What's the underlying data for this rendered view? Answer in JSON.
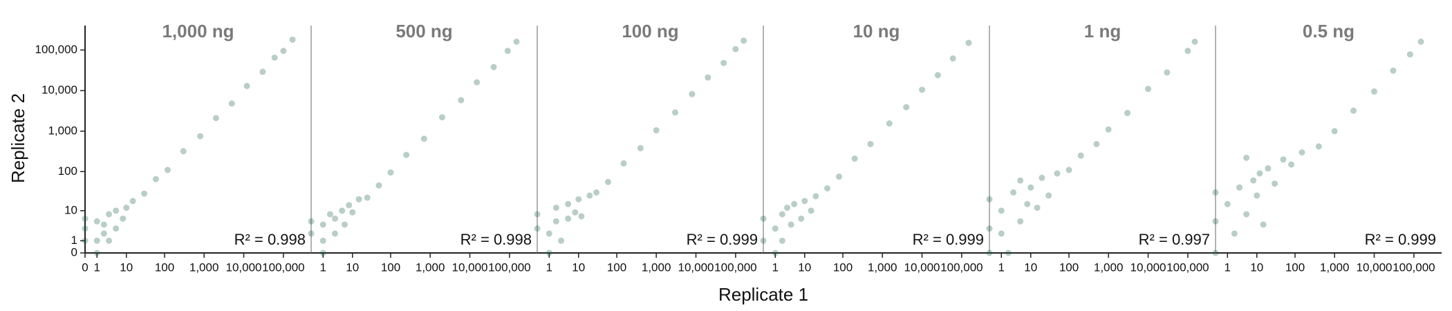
{
  "axes": {
    "xlabel": "Replicate 1",
    "ylabel": "Replicate 2"
  },
  "chart_data": [
    {
      "type": "scatter",
      "title": "1,000 ng",
      "annotation": "R² = 0.998",
      "color": "#135c44",
      "alpha": 0.3,
      "scale": "log1p",
      "xlim": [
        0,
        500000
      ],
      "ylim": [
        0,
        400000
      ],
      "xticks": [
        0,
        1,
        10,
        100,
        {
          "value": 1000,
          "label": "1,000"
        },
        {
          "value": 10000,
          "label": "10,000"
        },
        {
          "value": 100000,
          "label": "100,000"
        }
      ],
      "yticks": [
        0,
        1,
        10,
        100,
        {
          "value": 1000,
          "label": "1,000"
        },
        {
          "value": 10000,
          "label": "10,000"
        },
        {
          "value": 100000,
          "label": "100,000"
        }
      ],
      "x": [
        0,
        0,
        0,
        1,
        1,
        1,
        2,
        2,
        3,
        3,
        5,
        5,
        8,
        10,
        15,
        30,
        60,
        120,
        300,
        800,
        2000,
        5000,
        12000,
        30000,
        60000,
        100000,
        170000
      ],
      "y": [
        1,
        3,
        6,
        0,
        1,
        5,
        2,
        4,
        1,
        8,
        3,
        10,
        6,
        12,
        18,
        28,
        65,
        110,
        320,
        750,
        2100,
        4800,
        13000,
        29000,
        65000,
        95000,
        180000
      ]
    },
    {
      "type": "scatter",
      "title": "500 ng",
      "annotation": "R² = 0.998",
      "color": "#135c44",
      "alpha": 0.3,
      "scale": "log1p",
      "xlim": [
        0,
        500000
      ],
      "ylim": [
        0,
        400000
      ],
      "xticks": [
        1,
        10,
        100,
        {
          "value": 1000,
          "label": "1,000"
        },
        {
          "value": 10000,
          "label": "10,000"
        },
        {
          "value": 100000,
          "label": "100,000"
        }
      ],
      "x": [
        0,
        0,
        1,
        1,
        1,
        2,
        3,
        3,
        5,
        6,
        8,
        10,
        15,
        25,
        50,
        100,
        250,
        700,
        2000,
        6000,
        15000,
        40000,
        90000,
        150000
      ],
      "y": [
        2,
        5,
        0,
        1,
        4,
        8,
        2,
        6,
        10,
        4,
        14,
        9,
        20,
        22,
        45,
        95,
        260,
        650,
        2200,
        5800,
        16000,
        38000,
        95000,
        160000
      ]
    },
    {
      "type": "scatter",
      "title": "100 ng",
      "annotation": "R² = 0.999",
      "color": "#135c44",
      "alpha": 0.3,
      "scale": "log1p",
      "xlim": [
        0,
        500000
      ],
      "ylim": [
        0,
        400000
      ],
      "xticks": [
        1,
        10,
        100,
        {
          "value": 1000,
          "label": "1,000"
        },
        {
          "value": 10000,
          "label": "10,000"
        },
        {
          "value": 100000,
          "label": "100,000"
        }
      ],
      "x": [
        0,
        0,
        1,
        1,
        2,
        2,
        3,
        5,
        5,
        8,
        10,
        12,
        20,
        30,
        60,
        150,
        400,
        1000,
        3000,
        8000,
        20000,
        50000,
        100000,
        160000
      ],
      "y": [
        3,
        8,
        0,
        2,
        5,
        12,
        1,
        6,
        15,
        9,
        20,
        7,
        25,
        30,
        55,
        160,
        380,
        1050,
        2900,
        8200,
        21000,
        48000,
        105000,
        170000
      ]
    },
    {
      "type": "scatter",
      "title": "10 ng",
      "annotation": "R² = 0.999",
      "color": "#135c44",
      "alpha": 0.3,
      "scale": "log1p",
      "xlim": [
        0,
        500000
      ],
      "ylim": [
        0,
        400000
      ],
      "xticks": [
        1,
        10,
        100,
        {
          "value": 1000,
          "label": "1,000"
        },
        {
          "value": 10000,
          "label": "10,000"
        },
        {
          "value": 100000,
          "label": "100,000"
        }
      ],
      "x": [
        0,
        0,
        1,
        1,
        2,
        2,
        3,
        4,
        5,
        8,
        10,
        15,
        20,
        40,
        80,
        200,
        500,
        1500,
        4000,
        10000,
        25000,
        60000,
        150000
      ],
      "y": [
        1,
        6,
        0,
        3,
        8,
        1,
        12,
        4,
        15,
        6,
        18,
        10,
        24,
        38,
        75,
        210,
        480,
        1550,
        3900,
        10500,
        24000,
        62000,
        150000
      ]
    },
    {
      "type": "scatter",
      "title": "1 ng",
      "annotation": "R² = 0.997",
      "color": "#135c44",
      "alpha": 0.3,
      "scale": "log1p",
      "xlim": [
        0,
        500000
      ],
      "ylim": [
        0,
        400000
      ],
      "xticks": [
        1,
        10,
        100,
        {
          "value": 1000,
          "label": "1,000"
        },
        {
          "value": 10000,
          "label": "10,000"
        },
        {
          "value": 100000,
          "label": "100,000"
        }
      ],
      "x": [
        0,
        0,
        0,
        1,
        1,
        2,
        3,
        5,
        5,
        8,
        10,
        15,
        20,
        30,
        50,
        100,
        200,
        500,
        1000,
        3000,
        10000,
        30000,
        100000,
        150000
      ],
      "y": [
        3,
        20,
        0,
        10,
        2,
        0,
        30,
        5,
        60,
        15,
        40,
        12,
        70,
        25,
        90,
        110,
        250,
        480,
        1100,
        2800,
        11000,
        28000,
        95000,
        160000
      ]
    },
    {
      "type": "scatter",
      "title": "0.5 ng",
      "annotation": "R² = 0.999",
      "color": "#135c44",
      "alpha": 0.3,
      "scale": "log1p",
      "xlim": [
        0,
        500000
      ],
      "ylim": [
        0,
        400000
      ],
      "xticks": [
        1,
        10,
        100,
        {
          "value": 1000,
          "label": "1,000"
        },
        {
          "value": 10000,
          "label": "10,000"
        },
        {
          "value": 100000,
          "label": "100,000"
        }
      ],
      "x": [
        0,
        0,
        0,
        1,
        2,
        3,
        5,
        5,
        8,
        10,
        12,
        15,
        20,
        30,
        50,
        80,
        150,
        400,
        1000,
        3000,
        10000,
        30000,
        80000,
        150000
      ],
      "y": [
        5,
        30,
        0,
        15,
        2,
        40,
        220,
        8,
        60,
        25,
        90,
        4,
        120,
        50,
        200,
        150,
        300,
        420,
        1000,
        3200,
        9500,
        31000,
        78000,
        160000
      ]
    }
  ]
}
